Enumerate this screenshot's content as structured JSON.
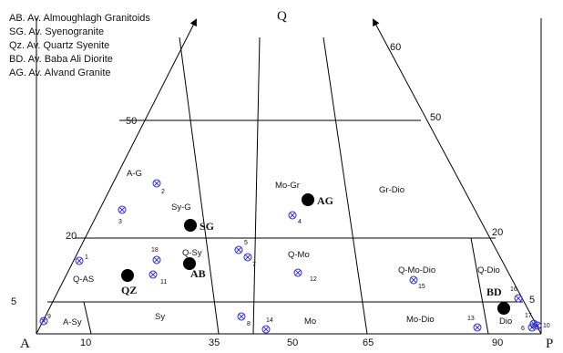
{
  "legend": [
    "AB. Av. Almoughlagh Granitoids",
    "SG. Av. Syenogranite",
    "Qz. Av. Quartz Syenite",
    "BD. Av. Baba Ali Diorite",
    "AG. Av. Alvand Granite"
  ],
  "corners": {
    "q": "Q",
    "a": "A",
    "p": "P"
  },
  "q_ticks": {
    "left": [
      "5",
      "20",
      "50"
    ],
    "right": [
      "5",
      "20",
      "50",
      "60"
    ]
  },
  "p_ticks": [
    "10",
    "35",
    "50",
    "65",
    "90"
  ],
  "fields": [
    "A-G",
    "Sy-G",
    "Mo-Gr",
    "Gr-Dio",
    "Q-AS",
    "Q-Sy",
    "Q-Mo",
    "Q-Mo-Dio",
    "Q-Dio",
    "A-Sy",
    "Sy",
    "Mo",
    "Mo-Dio",
    "Dio"
  ],
  "averages": [
    "AG",
    "SG",
    "AB",
    "QZ",
    "BD"
  ],
  "samples": [
    "1",
    "2",
    "3",
    "4",
    "5",
    "6",
    "7",
    "8",
    "9",
    "10",
    "11",
    "12",
    "13",
    "14",
    "15",
    "16",
    "17",
    "18"
  ],
  "colors": {
    "line": "#000000",
    "sample": "#2a2ae0",
    "average": "#000000"
  }
}
